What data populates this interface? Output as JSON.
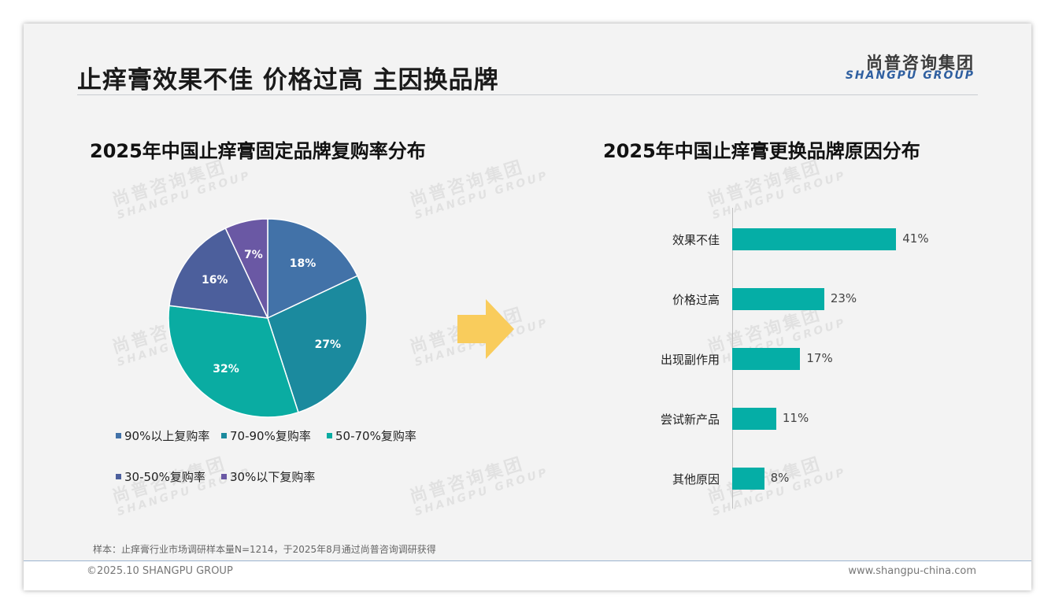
{
  "header": {
    "title": "止痒膏效果不佳 价格过高 主因换品牌",
    "logo_cn": "尚普咨询集团",
    "logo_en": "SHANGPU GROUP"
  },
  "watermark": {
    "cn": "尚普咨询集团",
    "en": "SHANGPU GROUP"
  },
  "chart_data": [
    {
      "type": "pie",
      "title": "2025年中国止痒膏固定品牌复购率分布",
      "categories": [
        "90%以上复购率",
        "70-90%复购率",
        "50-70%复购率",
        "30-50%复购率",
        "30%以下复购率"
      ],
      "values": [
        18,
        27,
        32,
        16,
        7
      ],
      "value_labels": [
        "18%",
        "27%",
        "32%",
        "16%",
        "7%"
      ],
      "colors": [
        "#4272a8",
        "#1b8a9e",
        "#0aaca2",
        "#4c5f9c",
        "#6a58a4"
      ],
      "legend": "bottom"
    },
    {
      "type": "bar",
      "orientation": "horizontal",
      "title": "2025年中国止痒膏更换品牌原因分布",
      "categories": [
        "效果不佳",
        "价格过高",
        "出现副作用",
        "尝试新产品",
        "其他原因"
      ],
      "values": [
        41,
        23,
        17,
        11,
        8
      ],
      "value_labels": [
        "41%",
        "23%",
        "17%",
        "11%",
        "8%"
      ],
      "color": "#05aea6"
    }
  ],
  "note": "样本：止痒膏行业市场调研样本量N=1214，于2025年8月通过尚普咨询调研获得",
  "footer": {
    "left": "©2025.10 SHANGPU GROUP",
    "right": "www.shangpu-china.com"
  },
  "colors": {
    "accent": "#05aea6",
    "arrow": "#f9cc5c",
    "logo_blue": "#2f5fa0"
  }
}
